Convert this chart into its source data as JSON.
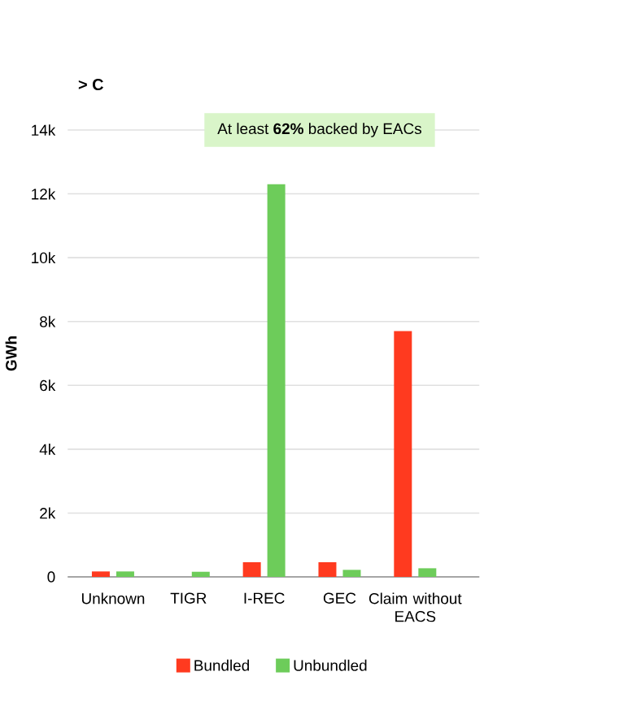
{
  "chart_data": {
    "type": "bar",
    "title": "> C",
    "annotations": [
      "At least **62%** backed by EACs"
    ],
    "ylabel": "GWh",
    "categories": [
      "Unknown",
      "TIGR",
      "I-REC",
      "GEC",
      "Claim without EACS"
    ],
    "series": [
      {
        "name": "Bundled",
        "color": "#ff3a1f",
        "values": [
          170,
          0,
          460,
          460,
          7700
        ]
      },
      {
        "name": "Unbundled",
        "color": "#6dcc5a",
        "values": [
          170,
          160,
          12300,
          220,
          270
        ]
      }
    ],
    "ylim": [
      0,
      14000
    ],
    "yticks": [
      {
        "value": 0,
        "label": "0"
      },
      {
        "value": 2000,
        "label": "2k"
      },
      {
        "value": 4000,
        "label": "4k"
      },
      {
        "value": 6000,
        "label": "6k"
      },
      {
        "value": 8000,
        "label": "8k"
      },
      {
        "value": 10000,
        "label": "10k"
      },
      {
        "value": 12000,
        "label": "12k"
      },
      {
        "value": 14000,
        "label": "14k"
      }
    ],
    "grid": "y",
    "legend": "bottom"
  }
}
